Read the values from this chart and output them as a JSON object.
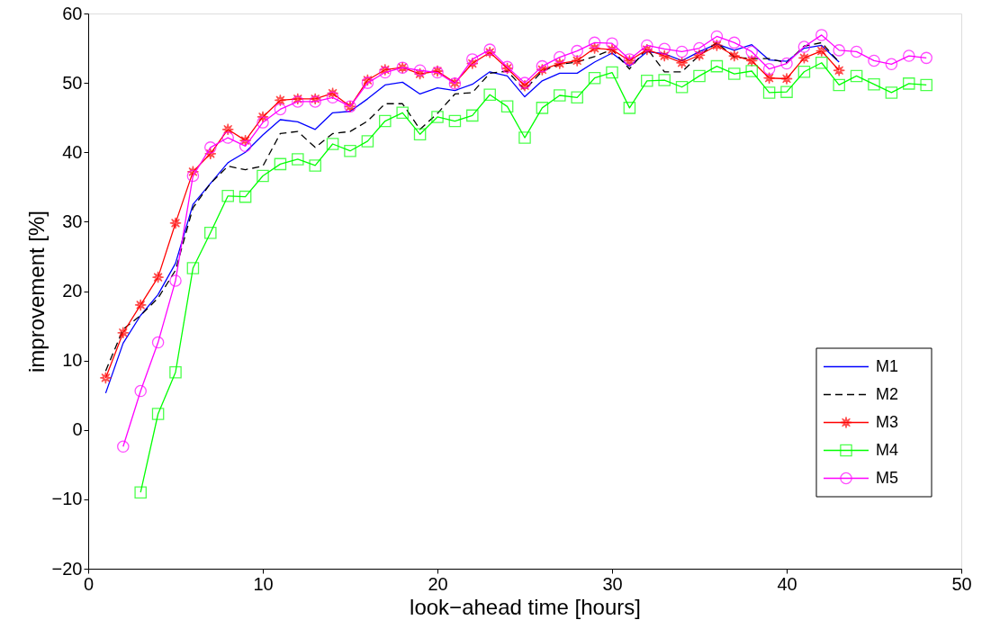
{
  "chart_data": {
    "type": "line",
    "xlabel": "look−ahead time [hours]",
    "ylabel": "improvement [%]",
    "x": [
      1,
      2,
      3,
      4,
      5,
      6,
      7,
      8,
      9,
      10,
      11,
      12,
      13,
      14,
      15,
      16,
      17,
      18,
      19,
      20,
      21,
      22,
      23,
      24,
      25,
      26,
      27,
      28,
      29,
      30,
      31,
      32,
      33,
      34,
      35,
      36,
      37,
      38,
      39,
      40,
      41,
      42,
      43,
      44,
      45,
      46,
      47,
      48
    ],
    "xlim": [
      0,
      50
    ],
    "xticks": [
      0,
      10,
      20,
      30,
      40,
      50
    ],
    "ylim": [
      -20,
      60
    ],
    "yticks": [
      -20,
      -10,
      0,
      10,
      20,
      30,
      40,
      50,
      60
    ],
    "grid": false,
    "legend": "bottom right",
    "series": [
      {
        "name": "M1",
        "color": "#0000ff",
        "marker": "none",
        "line_style": "solid",
        "values": [
          5.3,
          12.5,
          16.5,
          19.5,
          24,
          32.5,
          35.5,
          38.5,
          40,
          42.5,
          44.7,
          44.4,
          43.3,
          45.7,
          45.9,
          47.7,
          49.7,
          50.1,
          48.4,
          49.3,
          48.9,
          49.8,
          51.6,
          51,
          48,
          50.3,
          51.4,
          51.4,
          53,
          54.3,
          52.4,
          54.5,
          54.2,
          53.2,
          54.5,
          55.6,
          54.7,
          55.5,
          53.3,
          53.1,
          55,
          55.4,
          53,
          null,
          null,
          null,
          null,
          null
        ]
      },
      {
        "name": "M2",
        "color": "#000000",
        "marker": "none",
        "line_style": "dashed",
        "values": [
          8.5,
          14.5,
          16.5,
          19,
          23,
          32,
          35.5,
          38,
          37.5,
          38,
          42.7,
          43,
          40.7,
          42.7,
          43,
          44.5,
          47,
          47,
          43.3,
          45.6,
          48.4,
          48.6,
          51.4,
          51.7,
          49,
          51.7,
          52.7,
          53,
          53.8,
          54.8,
          52,
          55,
          51.6,
          51.6,
          54,
          55.8,
          53.7,
          53.5,
          53.5,
          52.9,
          55.3,
          55.8,
          53,
          null,
          null,
          null,
          null,
          null
        ]
      },
      {
        "name": "M3",
        "color": "#ff0000",
        "marker": "star",
        "line_style": "solid",
        "values": [
          7.5,
          14,
          18,
          22,
          29.8,
          37.2,
          39.8,
          43.3,
          41.7,
          45.1,
          47.5,
          47.7,
          47.7,
          48.5,
          46.6,
          50.4,
          51.9,
          52.2,
          51.3,
          51.7,
          50,
          52.8,
          54.4,
          52.1,
          49.6,
          51.9,
          52.8,
          53.2,
          55,
          54.8,
          53.2,
          54.8,
          53.9,
          52.9,
          54,
          55.4,
          53.9,
          53.2,
          50.7,
          50.6,
          53.6,
          54.6,
          51.8,
          null,
          null,
          null,
          null,
          null
        ]
      },
      {
        "name": "M4",
        "color": "#00ff00",
        "marker": "square",
        "line_style": "solid",
        "values": [
          null,
          null,
          -9,
          2.3,
          8.3,
          23.3,
          28.4,
          33.7,
          33.6,
          36.6,
          38.3,
          39,
          38.1,
          41.2,
          40.2,
          41.6,
          44.5,
          45.7,
          42.6,
          45.1,
          44.5,
          45.3,
          48.3,
          46.6,
          42.1,
          46.4,
          48.2,
          47.9,
          50.7,
          51.5,
          46.4,
          50.3,
          50.4,
          49.4,
          51,
          52.4,
          51.3,
          51.7,
          48.6,
          48.7,
          51.6,
          52.9,
          49.7,
          51,
          49.8,
          48.6,
          49.9,
          49.7
        ]
      },
      {
        "name": "M5",
        "color": "#ff00ff",
        "marker": "circle",
        "line_style": "solid",
        "values": [
          null,
          -2.4,
          5.6,
          12.6,
          21.5,
          36.6,
          40.7,
          42.1,
          40.9,
          44.3,
          46.2,
          47.3,
          47.3,
          47.9,
          46.6,
          50,
          51.5,
          52.2,
          51.8,
          51.5,
          49.9,
          53.4,
          54.8,
          52.3,
          50,
          52.4,
          53.7,
          54.6,
          55.8,
          55.7,
          53.4,
          55.4,
          54.9,
          54.5,
          55,
          56.7,
          55.8,
          54.5,
          52,
          52.8,
          55.2,
          56.9,
          54.7,
          54.5,
          53.2,
          52.7,
          53.9,
          53.6
        ]
      }
    ]
  }
}
